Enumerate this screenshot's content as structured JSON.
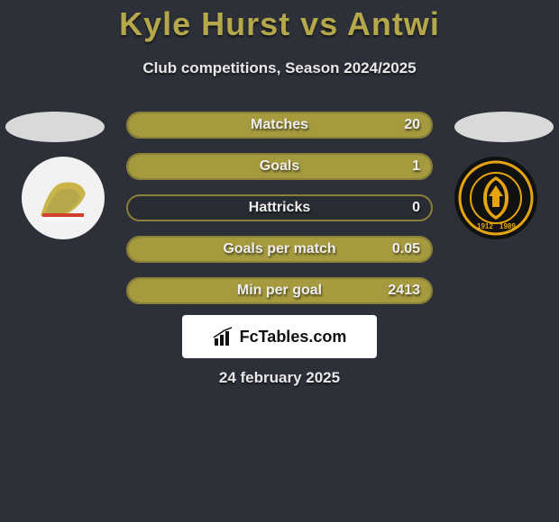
{
  "title": "Kyle Hurst vs Antwi",
  "subtitle": "Club competitions, Season 2024/2025",
  "date": "24 february 2025",
  "brand": "FcTables.com",
  "colors": {
    "accent": "#b5a84a",
    "bar_fill": "#a69a3f",
    "bar_border": "#89803a",
    "background": "#2d3038"
  },
  "bars": [
    {
      "label": "Matches",
      "value": "20",
      "fill_pct": 100
    },
    {
      "label": "Goals",
      "value": "1",
      "fill_pct": 100
    },
    {
      "label": "Hattricks",
      "value": "0",
      "fill_pct": 0
    },
    {
      "label": "Goals per match",
      "value": "0.05",
      "fill_pct": 100
    },
    {
      "label": "Min per goal",
      "value": "2413",
      "fill_pct": 100
    }
  ],
  "badges": {
    "left": {
      "name": "doncaster-badge",
      "bg": "#f2f2f2"
    },
    "right": {
      "name": "newport-badge",
      "bg": "#111111"
    }
  }
}
